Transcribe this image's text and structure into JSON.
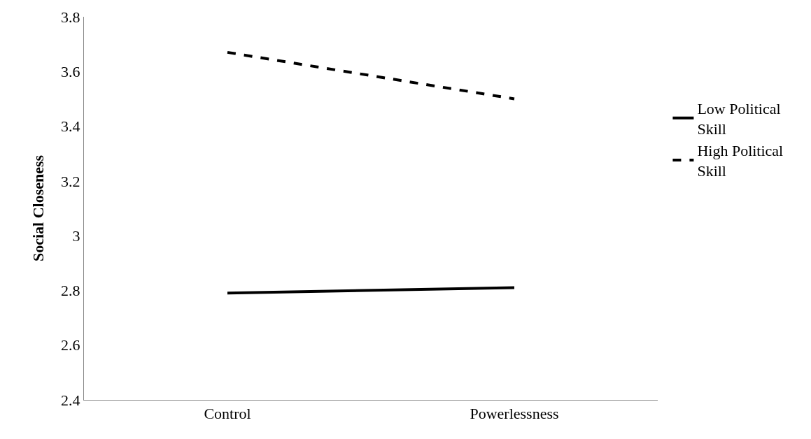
{
  "chart_data": {
    "type": "line",
    "ylabel": "Social Closeness",
    "categories": [
      "Control",
      "Powerlessness"
    ],
    "series": [
      {
        "name": "Low Political Skill",
        "color": "#000000",
        "values": [
          2.79,
          2.81
        ],
        "line_style": "solid"
      },
      {
        "name": "High Political Skill",
        "color": "#000000",
        "values": [
          3.67,
          3.5
        ],
        "line_style": "dashed"
      }
    ],
    "ylim": [
      2.4,
      3.8
    ],
    "yticks": [
      2.4,
      2.6,
      2.8,
      3,
      3.2,
      3.4,
      3.6,
      3.8
    ],
    "grid": false,
    "legend": "right",
    "marker": "none"
  }
}
